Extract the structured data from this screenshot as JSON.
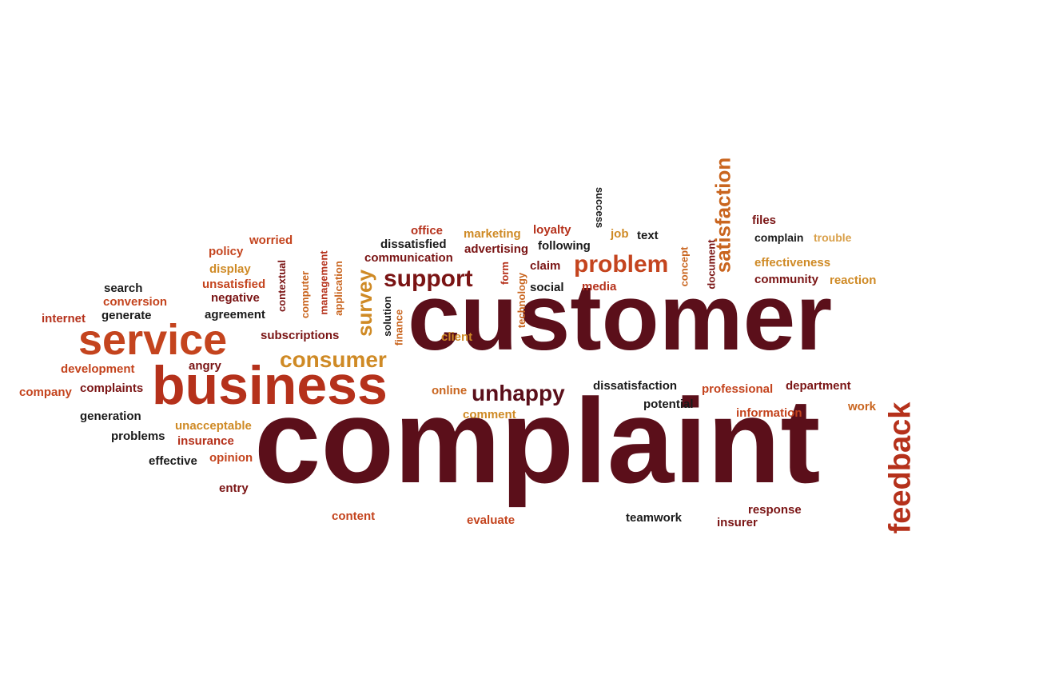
{
  "palette": {
    "maroon": "#5b0f1a",
    "darkred": "#7a1414",
    "red": "#b5311b",
    "orangered": "#c4441e",
    "orange": "#c9651f",
    "amber": "#cf8a25",
    "tan": "#d9a04a",
    "black": "#1a1a1a"
  },
  "words": [
    {
      "id": "customer",
      "text": "customer",
      "color": "maroon"
    },
    {
      "id": "complaint",
      "text": "complaint",
      "color": "maroon"
    },
    {
      "id": "business",
      "text": "business",
      "color": "red"
    },
    {
      "id": "service",
      "text": "service",
      "color": "orangered"
    },
    {
      "id": "feedback",
      "text": "feedback",
      "color": "red"
    },
    {
      "id": "satisfaction",
      "text": "satisfaction",
      "color": "orange"
    },
    {
      "id": "problem",
      "text": "problem",
      "color": "orangered"
    },
    {
      "id": "support",
      "text": "support",
      "color": "darkred"
    },
    {
      "id": "consumer",
      "text": "consumer",
      "color": "amber"
    },
    {
      "id": "unhappy",
      "text": "unhappy",
      "color": "maroon"
    },
    {
      "id": "survey",
      "text": "survey",
      "color": "amber"
    },
    {
      "id": "office",
      "text": "office",
      "color": "red"
    },
    {
      "id": "dissatisfied",
      "text": "dissatisfied",
      "color": "black"
    },
    {
      "id": "communication",
      "text": "communication",
      "color": "darkred"
    },
    {
      "id": "marketing",
      "text": "marketing",
      "color": "amber"
    },
    {
      "id": "advertising",
      "text": "advertising",
      "color": "darkred"
    },
    {
      "id": "loyalty",
      "text": "loyalty",
      "color": "red"
    },
    {
      "id": "following",
      "text": "following",
      "color": "black"
    },
    {
      "id": "job",
      "text": "job",
      "color": "amber"
    },
    {
      "id": "text",
      "text": "text",
      "color": "black"
    },
    {
      "id": "success",
      "text": "success",
      "color": "black"
    },
    {
      "id": "claim",
      "text": "claim",
      "color": "darkred"
    },
    {
      "id": "social",
      "text": "social",
      "color": "black"
    },
    {
      "id": "media",
      "text": "media",
      "color": "red"
    },
    {
      "id": "form",
      "text": "form",
      "color": "red"
    },
    {
      "id": "technology",
      "text": "technology",
      "color": "orange"
    },
    {
      "id": "concept",
      "text": "concept",
      "color": "orange"
    },
    {
      "id": "document",
      "text": "document",
      "color": "darkred"
    },
    {
      "id": "files",
      "text": "files",
      "color": "darkred"
    },
    {
      "id": "complain",
      "text": "complain",
      "color": "black"
    },
    {
      "id": "trouble",
      "text": "trouble",
      "color": "tan"
    },
    {
      "id": "effectiveness",
      "text": "effectiveness",
      "color": "amber"
    },
    {
      "id": "community",
      "text": "community",
      "color": "darkred"
    },
    {
      "id": "reaction",
      "text": "reaction",
      "color": "amber"
    },
    {
      "id": "policy",
      "text": "policy",
      "color": "orangered"
    },
    {
      "id": "worried",
      "text": "worried",
      "color": "orangered"
    },
    {
      "id": "display",
      "text": "display",
      "color": "amber"
    },
    {
      "id": "unsatisfied",
      "text": "unsatisfied",
      "color": "orangered"
    },
    {
      "id": "negative",
      "text": "negative",
      "color": "darkred"
    },
    {
      "id": "search",
      "text": "search",
      "color": "black"
    },
    {
      "id": "conversion",
      "text": "conversion",
      "color": "orangered"
    },
    {
      "id": "generate",
      "text": "generate",
      "color": "black"
    },
    {
      "id": "internet",
      "text": "internet",
      "color": "red"
    },
    {
      "id": "agreement",
      "text": "agreement",
      "color": "black"
    },
    {
      "id": "contextual",
      "text": "contextual",
      "color": "darkred"
    },
    {
      "id": "computer",
      "text": "computer",
      "color": "orange"
    },
    {
      "id": "management",
      "text": "management",
      "color": "red"
    },
    {
      "id": "application",
      "text": "application",
      "color": "orange"
    },
    {
      "id": "subscriptions",
      "text": "subscriptions",
      "color": "darkred"
    },
    {
      "id": "solution",
      "text": "solution",
      "color": "black"
    },
    {
      "id": "finance",
      "text": "finance",
      "color": "orange"
    },
    {
      "id": "client",
      "text": "client",
      "color": "amber"
    },
    {
      "id": "development",
      "text": "development",
      "color": "orangered"
    },
    {
      "id": "angry",
      "text": "angry",
      "color": "darkred"
    },
    {
      "id": "company",
      "text": "company",
      "color": "orangered"
    },
    {
      "id": "complaints",
      "text": "complaints",
      "color": "darkred"
    },
    {
      "id": "generation",
      "text": "generation",
      "color": "black"
    },
    {
      "id": "unacceptable",
      "text": "unacceptable",
      "color": "amber"
    },
    {
      "id": "problems",
      "text": "problems",
      "color": "black"
    },
    {
      "id": "insurance",
      "text": "insurance",
      "color": "red"
    },
    {
      "id": "effective",
      "text": "effective",
      "color": "black"
    },
    {
      "id": "opinion",
      "text": "opinion",
      "color": "orangered"
    },
    {
      "id": "entry",
      "text": "entry",
      "color": "darkred"
    },
    {
      "id": "content",
      "text": "content",
      "color": "orangered"
    },
    {
      "id": "online",
      "text": "online",
      "color": "orange"
    },
    {
      "id": "comment",
      "text": "comment",
      "color": "amber"
    },
    {
      "id": "evaluate",
      "text": "evaluate",
      "color": "orangered"
    },
    {
      "id": "dissatisfaction",
      "text": "dissatisfaction",
      "color": "black"
    },
    {
      "id": "potential",
      "text": "potential",
      "color": "black"
    },
    {
      "id": "professional",
      "text": "professional",
      "color": "orangered"
    },
    {
      "id": "department",
      "text": "department",
      "color": "darkred"
    },
    {
      "id": "information",
      "text": "information",
      "color": "orangered"
    },
    {
      "id": "work",
      "text": "work",
      "color": "orange"
    },
    {
      "id": "teamwork",
      "text": "teamwork",
      "color": "black"
    },
    {
      "id": "response",
      "text": "response",
      "color": "darkred"
    },
    {
      "id": "insurer",
      "text": "insurer",
      "color": "darkred"
    }
  ]
}
